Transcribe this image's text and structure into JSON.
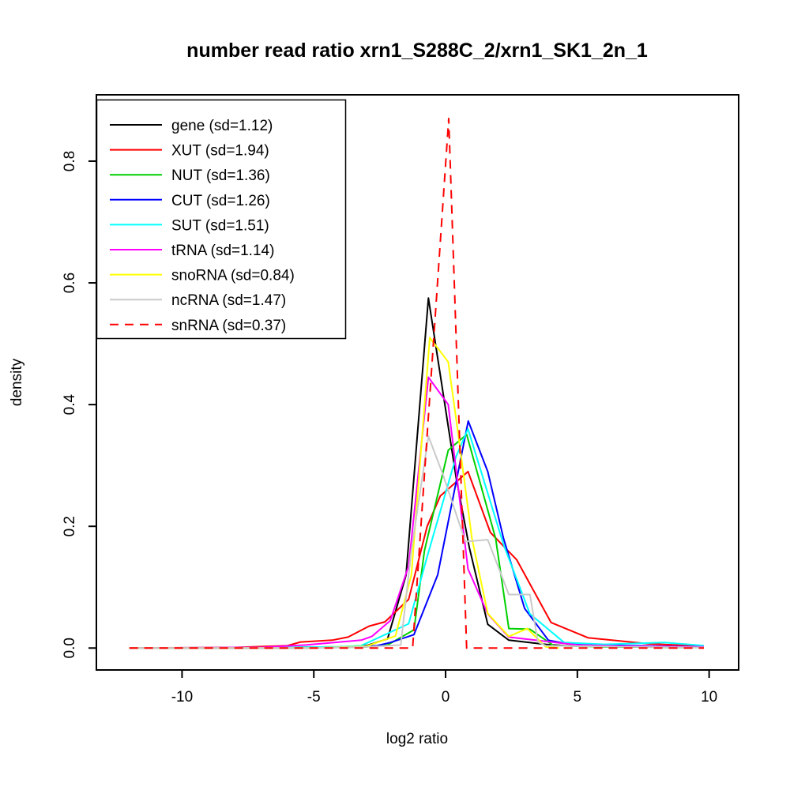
{
  "title": "number read ratio xrn1_S288C_2/xrn1_SK1_2n_1",
  "chart_data": {
    "type": "line",
    "title": "number read ratio xrn1_S288C_2/xrn1_SK1_2n_1",
    "xlabel": "log2 ratio",
    "ylabel": "density",
    "x_ticks": [
      -10,
      -5,
      0,
      5,
      10
    ],
    "y_ticks": [
      "0.0",
      "0.2",
      "0.4",
      "0.6",
      "0.8"
    ],
    "xlim": [
      -13.25,
      11.12
    ],
    "ylim": [
      -0.036,
      0.909
    ],
    "grid": false,
    "legend_position": "top-left",
    "series": [
      {
        "name": "gene",
        "sd": 1.12,
        "legend_label": "gene (sd=1.12)",
        "color": "#000000",
        "dash": "solid",
        "points": [
          [
            -12,
            0
          ],
          [
            -8,
            0
          ],
          [
            -6,
            0.001
          ],
          [
            -4,
            0.002
          ],
          [
            -3,
            0.004
          ],
          [
            -2.2,
            0.015
          ],
          [
            -1.5,
            0.12
          ],
          [
            -0.65,
            0.575
          ],
          [
            0.4,
            0.28
          ],
          [
            0.9,
            0.165
          ],
          [
            1.6,
            0.039
          ],
          [
            2.4,
            0.013
          ],
          [
            3.8,
            0.006
          ],
          [
            4.5,
            0.004
          ],
          [
            7,
            0.002
          ],
          [
            9.8,
            0.001
          ]
        ]
      },
      {
        "name": "XUT",
        "sd": 1.94,
        "legend_label": "XUT (sd=1.94)",
        "color": "#ff0000",
        "dash": "solid",
        "points": [
          [
            -12,
            0
          ],
          [
            -8,
            0.001
          ],
          [
            -6,
            0.004
          ],
          [
            -5.5,
            0.01
          ],
          [
            -4.3,
            0.013
          ],
          [
            -3.7,
            0.018
          ],
          [
            -2.9,
            0.036
          ],
          [
            -2.3,
            0.043
          ],
          [
            -1.4,
            0.08
          ],
          [
            -0.7,
            0.2
          ],
          [
            -0.2,
            0.25
          ],
          [
            0.85,
            0.29
          ],
          [
            1.7,
            0.19
          ],
          [
            2.7,
            0.145
          ],
          [
            4,
            0.042
          ],
          [
            5.4,
            0.017
          ],
          [
            7.7,
            0.007
          ],
          [
            9.8,
            0.003
          ]
        ]
      },
      {
        "name": "NUT",
        "sd": 1.36,
        "legend_label": "NUT (sd=1.36)",
        "color": "#00d000",
        "dash": "solid",
        "points": [
          [
            -12,
            0
          ],
          [
            -6,
            0
          ],
          [
            -4,
            0.001
          ],
          [
            -3,
            0.002
          ],
          [
            -2.2,
            0.005
          ],
          [
            -1.2,
            0.03
          ],
          [
            -0.8,
            0.16
          ],
          [
            0.1,
            0.325
          ],
          [
            0.8,
            0.351
          ],
          [
            1.9,
            0.18
          ],
          [
            2.4,
            0.032
          ],
          [
            3.2,
            0.031
          ],
          [
            4.1,
            0.004
          ],
          [
            6,
            0.002
          ],
          [
            9.8,
            0.001
          ]
        ]
      },
      {
        "name": "CUT",
        "sd": 1.26,
        "legend_label": "CUT (sd=1.26)",
        "color": "#0000ff",
        "dash": "solid",
        "points": [
          [
            -12,
            0
          ],
          [
            -5,
            0
          ],
          [
            -3.5,
            0.002
          ],
          [
            -2.6,
            0.004
          ],
          [
            -2.1,
            0.009
          ],
          [
            -1.2,
            0.022
          ],
          [
            -0.3,
            0.12
          ],
          [
            0.86,
            0.373
          ],
          [
            1.6,
            0.29
          ],
          [
            2.2,
            0.18
          ],
          [
            3,
            0.065
          ],
          [
            3.9,
            0.013
          ],
          [
            4.6,
            0.007
          ],
          [
            6.9,
            0.004
          ],
          [
            9.8,
            0.002
          ]
        ]
      },
      {
        "name": "SUT",
        "sd": 1.51,
        "legend_label": "SUT (sd=1.51)",
        "color": "#00ffff",
        "dash": "solid",
        "points": [
          [
            -12,
            0
          ],
          [
            -6,
            0.001
          ],
          [
            -4,
            0.002
          ],
          [
            -3.2,
            0.004
          ],
          [
            -1.4,
            0.04
          ],
          [
            -0.7,
            0.15
          ],
          [
            0.4,
            0.315
          ],
          [
            0.85,
            0.36
          ],
          [
            2.2,
            0.17
          ],
          [
            3.2,
            0.056
          ],
          [
            4.5,
            0.009
          ],
          [
            6,
            0.006
          ],
          [
            8.3,
            0.009
          ],
          [
            9.8,
            0.004
          ]
        ]
      },
      {
        "name": "tRNA",
        "sd": 1.14,
        "legend_label": "tRNA (sd=1.14)",
        "color": "#ff00ff",
        "dash": "solid",
        "points": [
          [
            -12,
            0
          ],
          [
            -7,
            0.001
          ],
          [
            -5.3,
            0.005
          ],
          [
            -3.2,
            0.013
          ],
          [
            -2.8,
            0.019
          ],
          [
            -2.1,
            0.045
          ],
          [
            -1.4,
            0.135
          ],
          [
            -0.65,
            0.445
          ],
          [
            0.1,
            0.4
          ],
          [
            0.85,
            0.13
          ],
          [
            1.6,
            0.056
          ],
          [
            2.4,
            0.018
          ],
          [
            5,
            0.005
          ],
          [
            7,
            0.003
          ],
          [
            9.8,
            0.002
          ]
        ]
      },
      {
        "name": "snoRNA",
        "sd": 0.84,
        "legend_label": "snoRNA (sd=0.84)",
        "color": "#ffff00",
        "dash": "solid",
        "points": [
          [
            -12,
            0
          ],
          [
            -5,
            0
          ],
          [
            -3,
            0.003
          ],
          [
            -1.9,
            0.02
          ],
          [
            -1.3,
            0.12
          ],
          [
            -0.6,
            0.51
          ],
          [
            0.1,
            0.47
          ],
          [
            0.5,
            0.345
          ],
          [
            1,
            0.18
          ],
          [
            1.6,
            0.057
          ],
          [
            2.4,
            0.019
          ],
          [
            3.1,
            0.032
          ],
          [
            3.8,
            0.002
          ],
          [
            4.3,
            0
          ]
        ]
      },
      {
        "name": "ncRNA",
        "sd": 1.47,
        "legend_label": "ncRNA (sd=1.47)",
        "color": "#c9c9c9",
        "dash": "solid",
        "points": [
          [
            -12,
            0
          ],
          [
            -5,
            0
          ],
          [
            -3,
            0.002
          ],
          [
            -1.7,
            0.005
          ],
          [
            -1.3,
            0.16
          ],
          [
            -0.65,
            0.348
          ],
          [
            -0.1,
            0.285
          ],
          [
            0.75,
            0.175
          ],
          [
            1.6,
            0.178
          ],
          [
            2.4,
            0.088
          ],
          [
            3.2,
            0.088
          ],
          [
            3.5,
            0.01
          ],
          [
            3.8,
            0.004
          ],
          [
            7,
            0.002
          ],
          [
            9.8,
            0.001
          ]
        ]
      },
      {
        "name": "snRNA",
        "sd": 0.37,
        "legend_label": "snRNA (sd=0.37)",
        "color": "#ff0000",
        "dash": "dashed",
        "points": [
          [
            -12,
            0
          ],
          [
            -1.25,
            0
          ],
          [
            0.12,
            0.87
          ],
          [
            0.8,
            0
          ],
          [
            5,
            0
          ],
          [
            9.8,
            0
          ]
        ]
      }
    ]
  }
}
